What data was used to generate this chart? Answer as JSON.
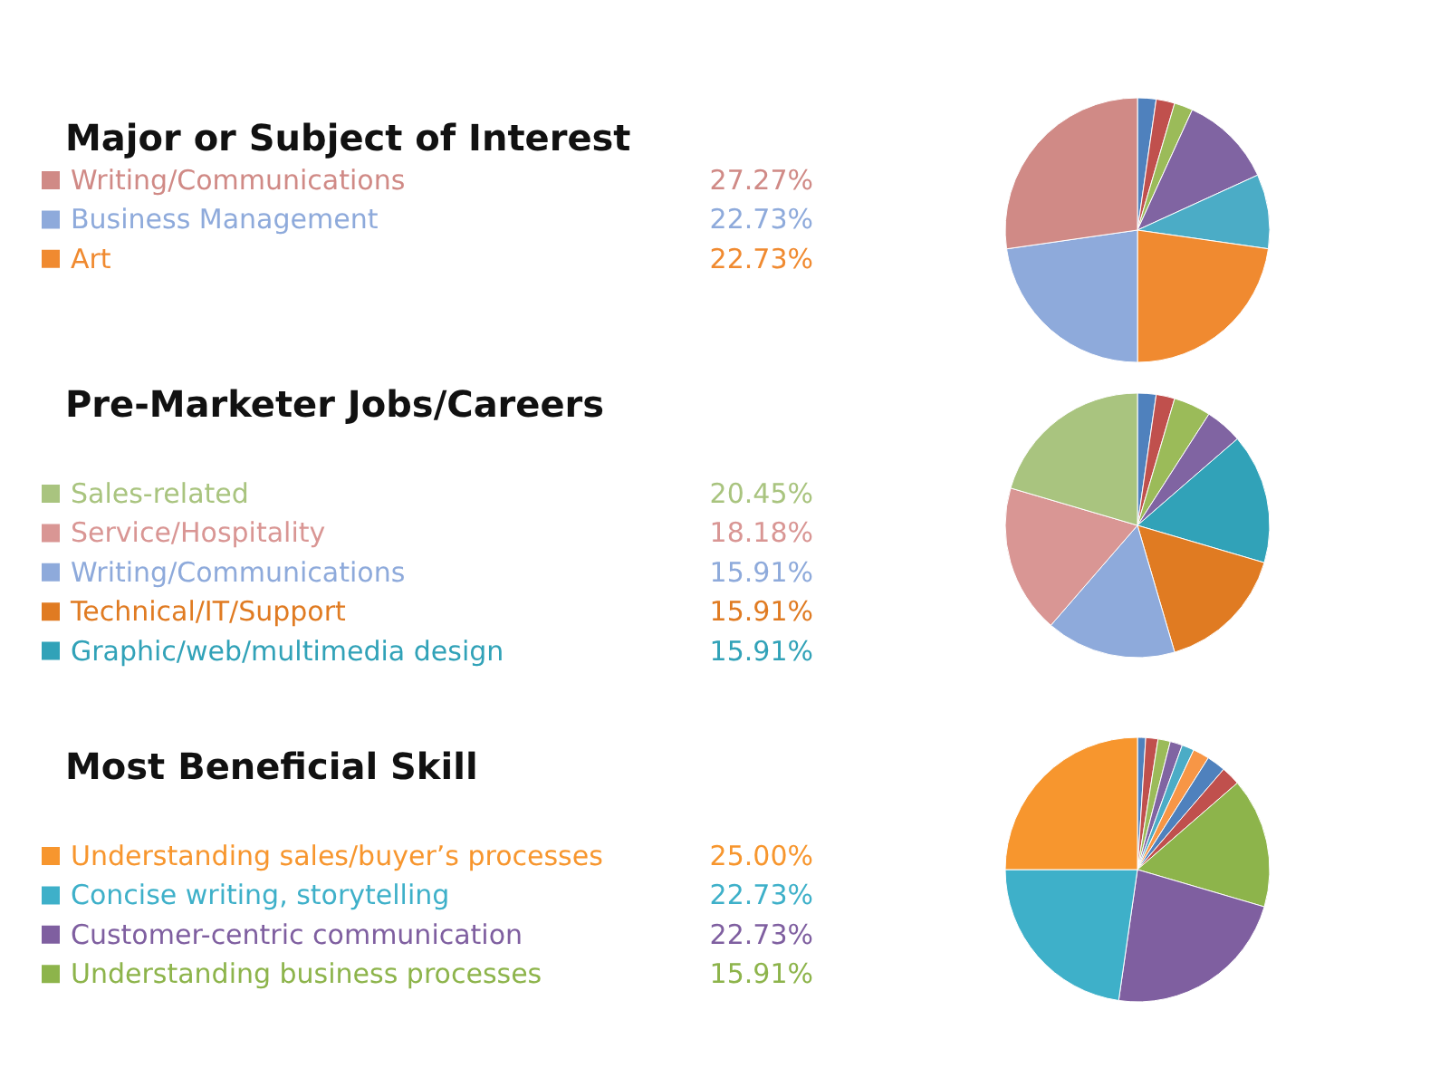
{
  "chart_data": [
    {
      "type": "pie",
      "title": "Major or Subject of Interest",
      "legend": "left",
      "categories": [
        null,
        null,
        null,
        null,
        null,
        "Art",
        "Business Management",
        "Writing/Communications"
      ],
      "values": [
        2.27,
        2.27,
        2.27,
        11.36,
        9.09,
        22.73,
        22.73,
        27.27
      ],
      "colors": [
        "#4f81bd",
        "#c0504d",
        "#9bbb59",
        "#8064a2",
        "#4bacc6",
        "#f08a30",
        "#8eaadb",
        "#d08a86"
      ],
      "value_labels": [
        null,
        null,
        null,
        null,
        null,
        "22.73%",
        "22.73%",
        "27.27%"
      ]
    },
    {
      "type": "pie",
      "title": "Pre-Marketer Jobs/Careers",
      "legend": "left",
      "categories": [
        null,
        null,
        null,
        null,
        "Graphic/web/multimedia design",
        "Technical/IT/Support",
        "Writing/Communications",
        "Service/Hospitality",
        "Sales-related"
      ],
      "values": [
        2.27,
        2.27,
        4.55,
        4.55,
        15.91,
        15.91,
        15.91,
        18.18,
        20.45
      ],
      "colors": [
        "#4f81bd",
        "#c0504d",
        "#9bbb59",
        "#8064a2",
        "#31a2b8",
        "#e07b22",
        "#8eaadb",
        "#d99694",
        "#a9c47f"
      ],
      "value_labels": [
        null,
        null,
        null,
        null,
        "15.91%",
        "15.91%",
        "15.91%",
        "18.18%",
        "20.45%"
      ]
    },
    {
      "type": "pie",
      "title": "Most Beneficial Skill",
      "legend": "left",
      "categories": [
        null,
        null,
        null,
        null,
        null,
        null,
        null,
        null,
        "Understanding business processes",
        "Customer-centric communication",
        "Concise writing, storytelling",
        "Understanding sales/buyer’s processes"
      ],
      "values": [
        1,
        1.5,
        1.5,
        1.5,
        1.5,
        2,
        2.3,
        2.33,
        15.91,
        22.73,
        22.73,
        25.0
      ],
      "colors": [
        "#4f81bd",
        "#c0504d",
        "#9bbb59",
        "#8064a2",
        "#4bacc6",
        "#f79646",
        "#4f81bd",
        "#c0504d",
        "#8db44b",
        "#7f5fa0",
        "#3eb0c9",
        "#f7962e"
      ],
      "value_labels": [
        null,
        null,
        null,
        null,
        null,
        null,
        null,
        null,
        "15.91%",
        "22.73%",
        "22.73%",
        "25.00%"
      ]
    }
  ]
}
